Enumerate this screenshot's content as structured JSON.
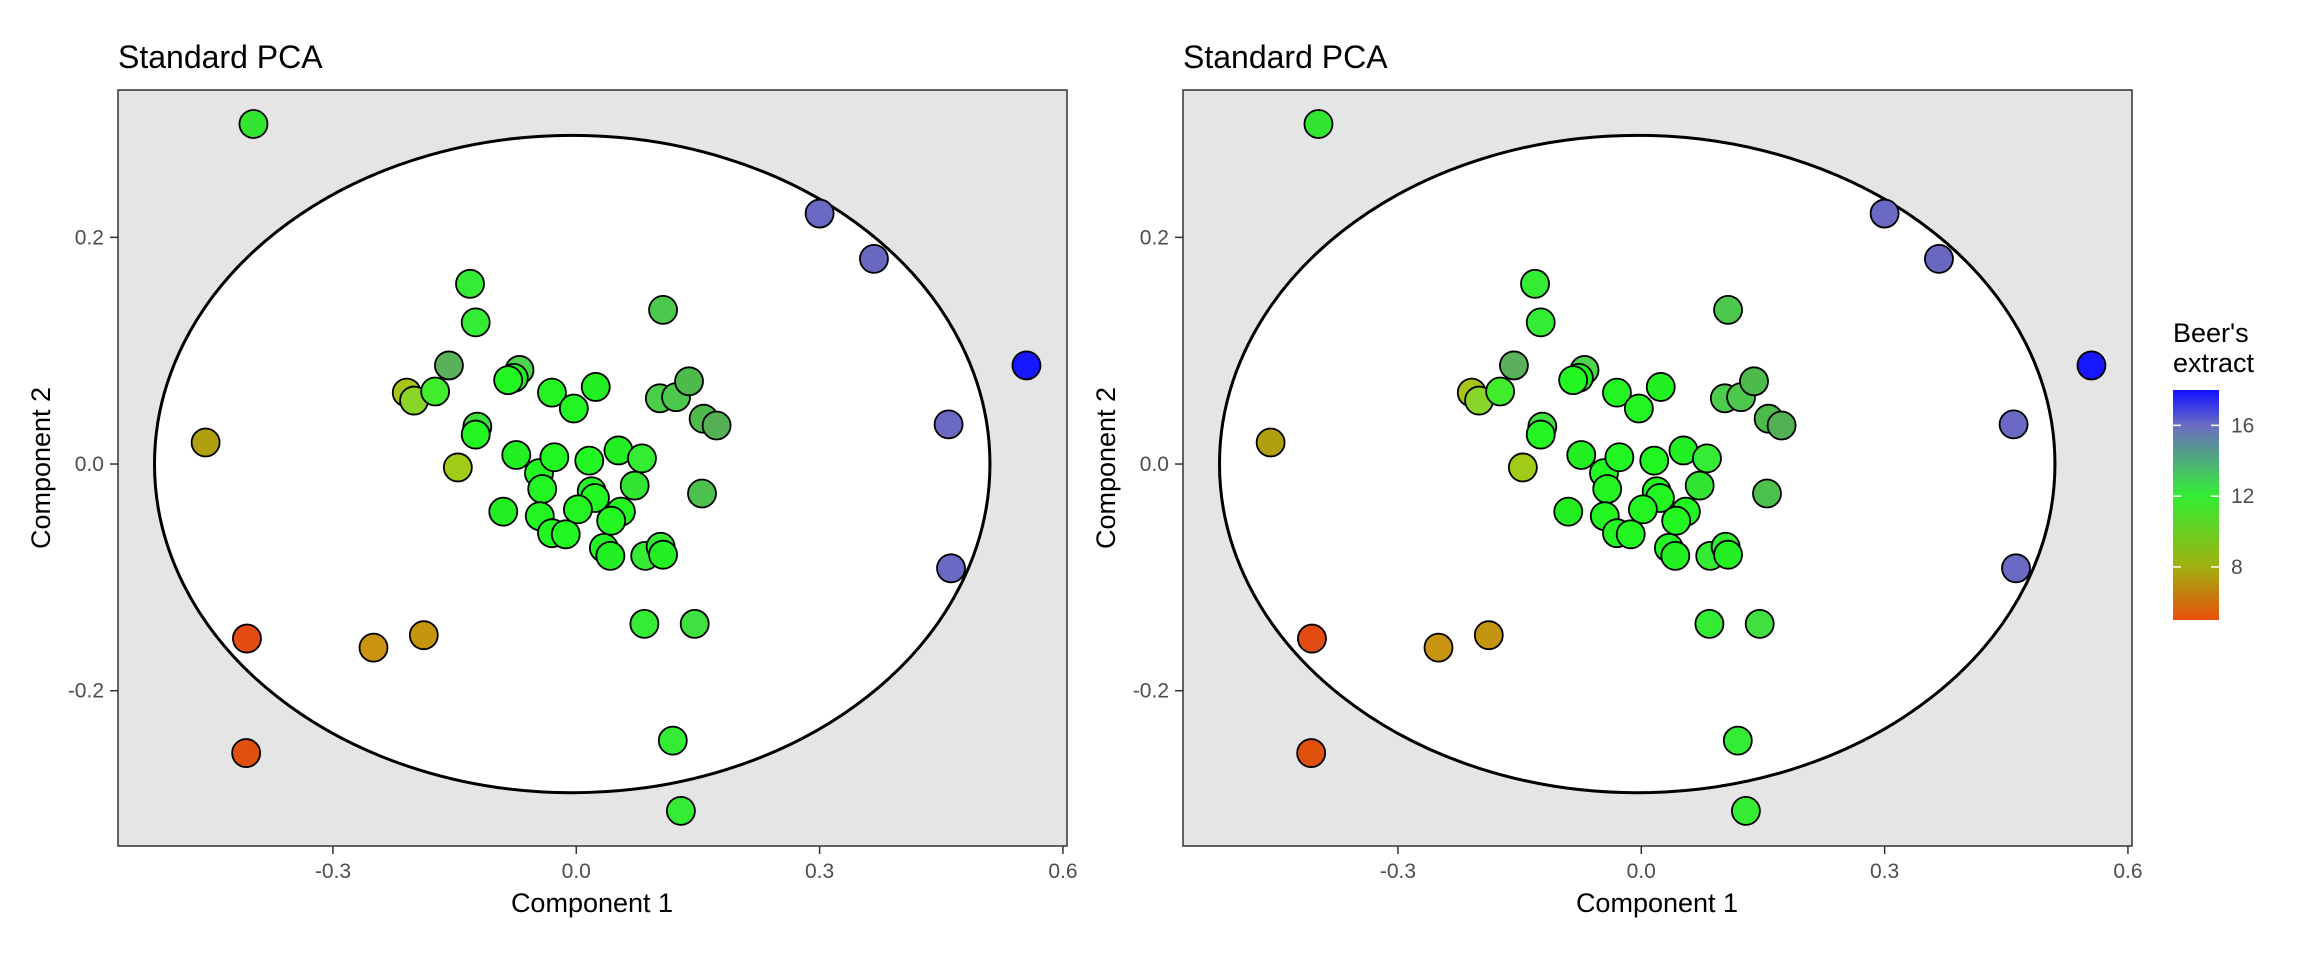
{
  "chart_data": [
    {
      "type": "scatter",
      "title": "Standard PCA",
      "xlabel": "Component 1",
      "ylabel": "Component 2",
      "xlim": [
        -0.565,
        0.605
      ],
      "ylim": [
        -0.337,
        0.33
      ],
      "xticks": [
        -0.3,
        0.0,
        0.3,
        0.6
      ],
      "xtick_labels": [
        "-0.3",
        "0.0",
        "0.3",
        "0.6"
      ],
      "yticks": [
        -0.2,
        0.0,
        0.2
      ],
      "ytick_labels": [
        "-0.2",
        "0.0",
        "0.2"
      ],
      "grid": false,
      "panel_background": "#e5e5e5",
      "circle": {
        "center": [
          -0.005,
          0.0
        ],
        "rx": 0.515,
        "ry": 0.29,
        "fill": "#ffffff"
      }
    },
    {
      "type": "scatter",
      "title": "Standard PCA",
      "xlabel": "Component 1",
      "ylabel": "Component 2",
      "xlim": [
        -0.565,
        0.605
      ],
      "ylim": [
        -0.337,
        0.33
      ],
      "xticks": [
        -0.3,
        0.0,
        0.3,
        0.6
      ],
      "xtick_labels": [
        "-0.3",
        "0.0",
        "0.3",
        "0.6"
      ],
      "yticks": [
        -0.2,
        0.0,
        0.2
      ],
      "ytick_labels": [
        "-0.2",
        "0.0",
        "0.2"
      ],
      "grid": false,
      "panel_background": "#e5e5e5",
      "circle": {
        "center": [
          -0.005,
          0.0
        ],
        "rx": 0.515,
        "ry": 0.29,
        "fill": "#ffffff"
      }
    }
  ],
  "points": [
    {
      "x": -0.398,
      "y": 0.3,
      "color": "#33e533"
    },
    {
      "x": 0.3,
      "y": 0.221,
      "color": "#6a6ac4"
    },
    {
      "x": 0.367,
      "y": 0.181,
      "color": "#6868c0"
    },
    {
      "x": 0.555,
      "y": 0.087,
      "color": "#1616ff"
    },
    {
      "x": 0.459,
      "y": 0.035,
      "color": "#6a6ac4"
    },
    {
      "x": 0.462,
      "y": -0.092,
      "color": "#6a6ac4"
    },
    {
      "x": -0.457,
      "y": 0.019,
      "color": "#b0a010"
    },
    {
      "x": -0.406,
      "y": -0.154,
      "color": "#e24b12"
    },
    {
      "x": -0.407,
      "y": -0.255,
      "color": "#e0500c"
    },
    {
      "x": -0.25,
      "y": -0.162,
      "color": "#c99410"
    },
    {
      "x": -0.188,
      "y": -0.151,
      "color": "#c59510"
    },
    {
      "x": -0.131,
      "y": 0.159,
      "color": "#33ec33"
    },
    {
      "x": -0.124,
      "y": 0.125,
      "color": "#33ec33"
    },
    {
      "x": -0.157,
      "y": 0.087,
      "color": "#5bb05b"
    },
    {
      "x": -0.209,
      "y": 0.063,
      "color": "#a8c41a"
    },
    {
      "x": -0.2,
      "y": 0.056,
      "color": "#8ad52a"
    },
    {
      "x": -0.174,
      "y": 0.064,
      "color": "#40ec2c"
    },
    {
      "x": -0.122,
      "y": 0.033,
      "color": "#40e040"
    },
    {
      "x": -0.124,
      "y": 0.026,
      "color": "#22f522"
    },
    {
      "x": -0.146,
      "y": -0.003,
      "color": "#a0cc18"
    },
    {
      "x": -0.07,
      "y": 0.083,
      "color": "#4cd44c"
    },
    {
      "x": -0.077,
      "y": 0.076,
      "color": "#22f022"
    },
    {
      "x": -0.084,
      "y": 0.074,
      "color": "#22f722"
    },
    {
      "x": -0.03,
      "y": 0.063,
      "color": "#22f522"
    },
    {
      "x": 0.024,
      "y": 0.068,
      "color": "#22f022"
    },
    {
      "x": -0.003,
      "y": 0.049,
      "color": "#22f522"
    },
    {
      "x": 0.107,
      "y": 0.136,
      "color": "#4cc94c"
    },
    {
      "x": 0.103,
      "y": 0.058,
      "color": "#4ccd4c"
    },
    {
      "x": 0.123,
      "y": 0.059,
      "color": "#4cc94c"
    },
    {
      "x": 0.139,
      "y": 0.073,
      "color": "#4cbb4c"
    },
    {
      "x": 0.157,
      "y": 0.04,
      "color": "#4cbb4c"
    },
    {
      "x": 0.173,
      "y": 0.034,
      "color": "#54b054"
    },
    {
      "x": -0.074,
      "y": 0.008,
      "color": "#22f022"
    },
    {
      "x": -0.046,
      "y": -0.008,
      "color": "#22f722"
    },
    {
      "x": -0.027,
      "y": 0.006,
      "color": "#22f722"
    },
    {
      "x": 0.016,
      "y": 0.003,
      "color": "#22f722"
    },
    {
      "x": 0.052,
      "y": 0.012,
      "color": "#22f022"
    },
    {
      "x": 0.081,
      "y": 0.005,
      "color": "#33ec33"
    },
    {
      "x": 0.155,
      "y": -0.026,
      "color": "#4cc04c"
    },
    {
      "x": 0.072,
      "y": -0.019,
      "color": "#33e533"
    },
    {
      "x": -0.042,
      "y": -0.022,
      "color": "#22f522"
    },
    {
      "x": 0.019,
      "y": -0.024,
      "color": "#22f522"
    },
    {
      "x": 0.023,
      "y": -0.03,
      "color": "#22f722"
    },
    {
      "x": -0.09,
      "y": -0.042,
      "color": "#22ee22"
    },
    {
      "x": -0.045,
      "y": -0.046,
      "color": "#22f522"
    },
    {
      "x": 0.002,
      "y": -0.04,
      "color": "#22f522"
    },
    {
      "x": 0.055,
      "y": -0.042,
      "color": "#22f522"
    },
    {
      "x": 0.043,
      "y": -0.05,
      "color": "#22f722"
    },
    {
      "x": -0.03,
      "y": -0.061,
      "color": "#22f522"
    },
    {
      "x": -0.013,
      "y": -0.062,
      "color": "#22f722"
    },
    {
      "x": 0.034,
      "y": -0.074,
      "color": "#22f522"
    },
    {
      "x": 0.042,
      "y": -0.081,
      "color": "#22f022"
    },
    {
      "x": 0.085,
      "y": -0.081,
      "color": "#33ec33"
    },
    {
      "x": 0.104,
      "y": -0.073,
      "color": "#33ec33"
    },
    {
      "x": 0.107,
      "y": -0.08,
      "color": "#22f022"
    },
    {
      "x": 0.084,
      "y": -0.141,
      "color": "#33ec33"
    },
    {
      "x": 0.146,
      "y": -0.141,
      "color": "#40e040"
    },
    {
      "x": 0.119,
      "y": -0.244,
      "color": "#33ec33"
    },
    {
      "x": 0.129,
      "y": -0.306,
      "color": "#33ec33"
    }
  ],
  "legend": {
    "title_line1": "Beer's",
    "title_line2": "extract",
    "min": 5,
    "max": 18,
    "ticks": [
      8,
      12,
      16
    ],
    "tick_labels": [
      "8",
      "12",
      "16"
    ],
    "colors": [
      "#e8500a",
      "#a0b010",
      "#33ee33",
      "#6a6ac4",
      "#1010ff"
    ]
  }
}
